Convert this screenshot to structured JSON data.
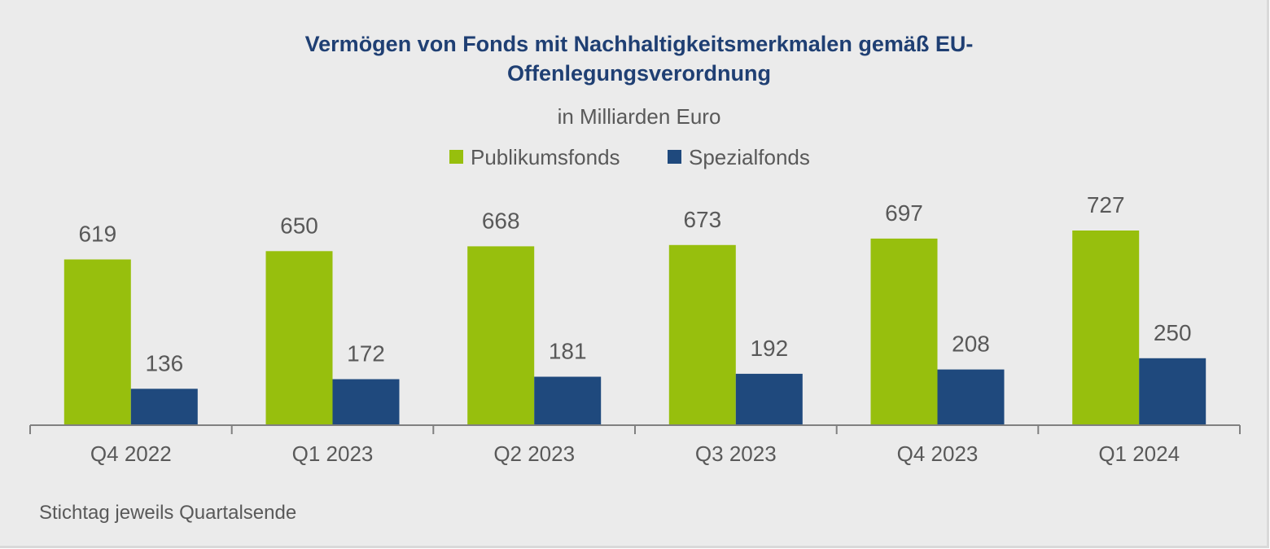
{
  "chart_data": {
    "type": "bar",
    "title_lines": [
      "Vermögen von Fonds mit Nachhaltigkeitsmerkmalen gemäß EU-",
      "Offenlegungsverordnung"
    ],
    "subtitle": "in Milliarden Euro",
    "categories": [
      "Q4 2022",
      "Q1 2023",
      "Q2 2023",
      "Q3 2023",
      "Q4 2023",
      "Q1 2024"
    ],
    "series": [
      {
        "name": "Publikumsfonds",
        "color": "#97bf0d",
        "values": [
          619,
          650,
          668,
          673,
          697,
          727
        ]
      },
      {
        "name": "Spezialfonds",
        "color": "#1f497d",
        "values": [
          136,
          172,
          181,
          192,
          208,
          250
        ]
      }
    ],
    "ylim": [
      0,
      727
    ],
    "grid": false,
    "legend_position": "top-center",
    "footnote": "Stichtag jeweils Quartalsende"
  }
}
